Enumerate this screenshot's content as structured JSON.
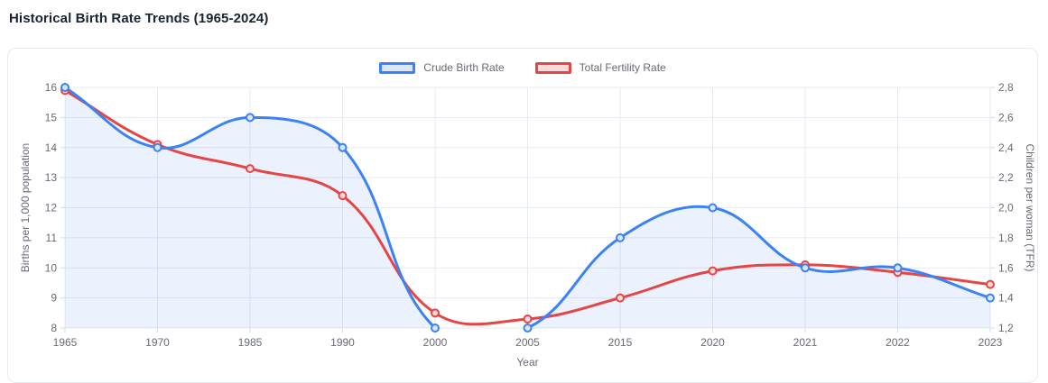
{
  "header": {
    "title": "Historical Birth Rate Trends (1965-2024)"
  },
  "colors": {
    "crude_birth_rate": "#3b82f6",
    "crude_birth_rate_light": "#dbe6fb",
    "crude_area_fill": "rgba(59,130,246,0.10)",
    "total_fertility_rate": "#e64545",
    "total_fertility_rate_light": "#f9d9d9",
    "grid": "#e6eaf1",
    "tick_mark": "#d4d9e2",
    "axis_text": "#666b74"
  },
  "chart_data": {
    "type": "line",
    "title": "Historical Birth Rate Trends (1965-2024)",
    "categories": [
      "1965",
      "1970",
      "1985",
      "1990",
      "2000",
      "2005",
      "2015",
      "2020",
      "2021",
      "2022",
      "2023"
    ],
    "series": [
      {
        "name": "Crude Birth Rate",
        "axis": "left",
        "color": "#3b82f6",
        "light": "#dbe6fb",
        "area_fill": "rgba(59,130,246,0.10)",
        "filled": true,
        "values": [
          16,
          14,
          15,
          14,
          8,
          8,
          11,
          12,
          10,
          10,
          9
        ]
      },
      {
        "name": "Total Fertility Rate",
        "axis": "right",
        "color": "#e64545",
        "light": "#f9d9d9",
        "filled": false,
        "values": [
          2.78,
          2.42,
          2.26,
          2.08,
          1.3,
          1.26,
          1.4,
          1.58,
          1.62,
          1.57,
          1.49
        ]
      }
    ],
    "xlabel": "Year",
    "left_axis": {
      "label": "Births per 1,000 population",
      "min": 8,
      "max": 16,
      "tick_labels": [
        "16",
        "15",
        "14",
        "13",
        "12",
        "11",
        "10",
        "9",
        "8"
      ]
    },
    "right_axis": {
      "label": "Children per woman (TFR)",
      "min": 1.2,
      "max": 2.8,
      "tick_labels": [
        "2,8",
        "2,6",
        "2,4",
        "2,2",
        "2,0",
        "1,8",
        "1,6",
        "1,4",
        "1,2"
      ]
    },
    "grid": true,
    "legend_position": "top",
    "curve_tension": 0.4
  }
}
